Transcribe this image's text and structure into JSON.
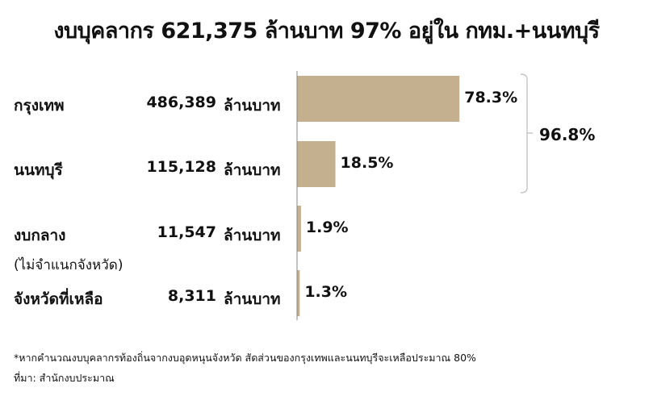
{
  "chart_data": {
    "type": "bar",
    "orientation": "horizontal",
    "title": "งบบุคลากร 621,375 ล้านบาท 97% อยู่ใน กทม.+นนทบุรี",
    "categories": [
      "กรุงเทพ",
      "นนทบุรี",
      "งบกลาง",
      "จังหวัดที่เหลือ"
    ],
    "category_notes": [
      "",
      "",
      "(ไม่จำแนกจังหวัด)",
      ""
    ],
    "amounts": [
      "486,389",
      "115,128",
      "11,547",
      "8,311"
    ],
    "amount_values": [
      486389,
      115128,
      11547,
      8311
    ],
    "unit": "ล้านบาท",
    "values": [
      78.3,
      18.5,
      1.9,
      1.3
    ],
    "value_labels": [
      "78.3%",
      "18.5%",
      "1.9%",
      "1.3%"
    ],
    "bracket": {
      "groups": [
        "กรุงเทพ",
        "นนทบุรี"
      ],
      "label": "96.8%"
    },
    "bar_color": "#c4af8f",
    "grid": false
  },
  "footnote": "*หากคำนวณงบบุคลากรท้องถิ่นจากงบอุดหนุนจังหวัด  สัดส่วนของกรุงเทพและนนทบุรีจะเหลือประมาณ 80%",
  "source": "ที่มา: สำนักงบประมาณ"
}
